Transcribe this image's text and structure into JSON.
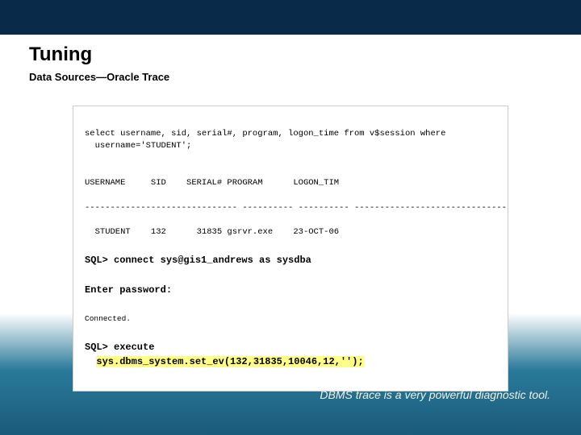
{
  "header": {
    "title": "Tuning",
    "subtitle": "Data Sources—Oracle Trace"
  },
  "code": {
    "query": "select username, sid, serial#, program, logon_time from v$session where\n  username='STUDENT';",
    "blank1": "",
    "cols": "USERNAME     SID    SERIAL# PROGRAM      LOGON_TIM",
    "sep": "------------------------------ ---------- ---------- ------------------------------------",
    "row": "  STUDENT    132      31835 gsrvr.exe    23-OCT-06",
    "connect": "SQL> connect sys@gis1_andrews as sysdba",
    "enter": "Enter password:",
    "connected": "Connected.",
    "exec1": "SQL> execute",
    "exec2_prefix": "  ",
    "exec2_hl": "sys.dbms_system.set_ev(132,31835,10046,12,'');"
  },
  "footer": {
    "note": "DBMS trace is a very powerful diagnostic tool."
  },
  "colors": {
    "header_band": "#0a2a4a",
    "gradient_mid": "#2a7a9a",
    "gradient_bottom": "#1a5a7a",
    "highlight": "#ffff88",
    "text": "#000000",
    "footer_text": "#f0f0e0"
  }
}
